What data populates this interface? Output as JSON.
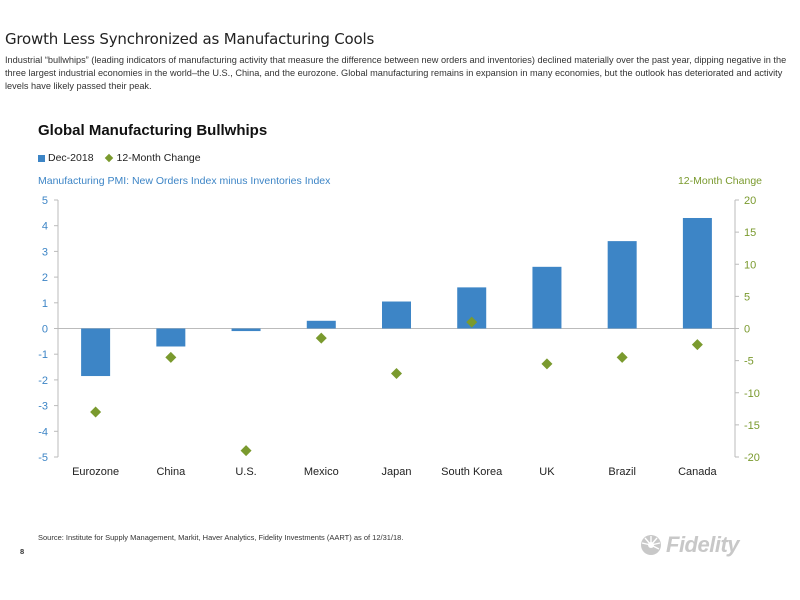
{
  "slide": {
    "title": "Growth Less Synchronized as Manufacturing Cools",
    "description": "Industrial “bullwhips” (leading indicators of manufacturing activity that measure the difference between new orders and inventories) declined materially over the past year, dipping negative in the three largest industrial economies in the world–the U.S., China, and the eurozone. Global manufacturing remains in expansion in many economies, but the outlook has deteriorated and activity levels have likely passed their peak.",
    "source": "Source: Institute for Supply Management, Markit, Haver Analytics, Fidelity Investments (AART) as of 12/31/18.",
    "page_number": "8",
    "logo_text": "Fidelity",
    "logo_icon": "fidelity-sunburst-logo"
  },
  "chart_data": {
    "type": "bar",
    "title": "Global Manufacturing Bullwhips",
    "ylabel": "Manufacturing PMI: New Orders Index minus Inventories Index",
    "y2label": "12-Month Change",
    "categories": [
      "Eurozone",
      "China",
      "U.S.",
      "Mexico",
      "Japan",
      "South Korea",
      "UK",
      "Brazil",
      "Canada"
    ],
    "series": [
      {
        "name": "Dec-2018",
        "type": "bar",
        "axis": "left",
        "color": "#3d85c6",
        "values": [
          -1.85,
          -0.7,
          -0.1,
          0.3,
          1.05,
          1.6,
          2.4,
          3.4,
          4.3
        ]
      },
      {
        "name": "12-Month Change",
        "type": "scatter",
        "axis": "right",
        "color": "#7a9a2e",
        "values": [
          -13,
          -4.5,
          -19,
          -1.5,
          -7,
          1,
          -5.5,
          -4.5,
          -2.5
        ]
      }
    ],
    "ylim": [
      -5,
      5
    ],
    "y2lim": [
      -20,
      20
    ],
    "yticks": [
      5,
      4,
      3,
      2,
      1,
      0,
      -1,
      -2,
      -3,
      -4,
      -5
    ],
    "y2ticks": [
      20,
      15,
      10,
      5,
      0,
      -5,
      -10,
      -15,
      -20
    ],
    "grid": false,
    "legend_position": "top-left"
  }
}
